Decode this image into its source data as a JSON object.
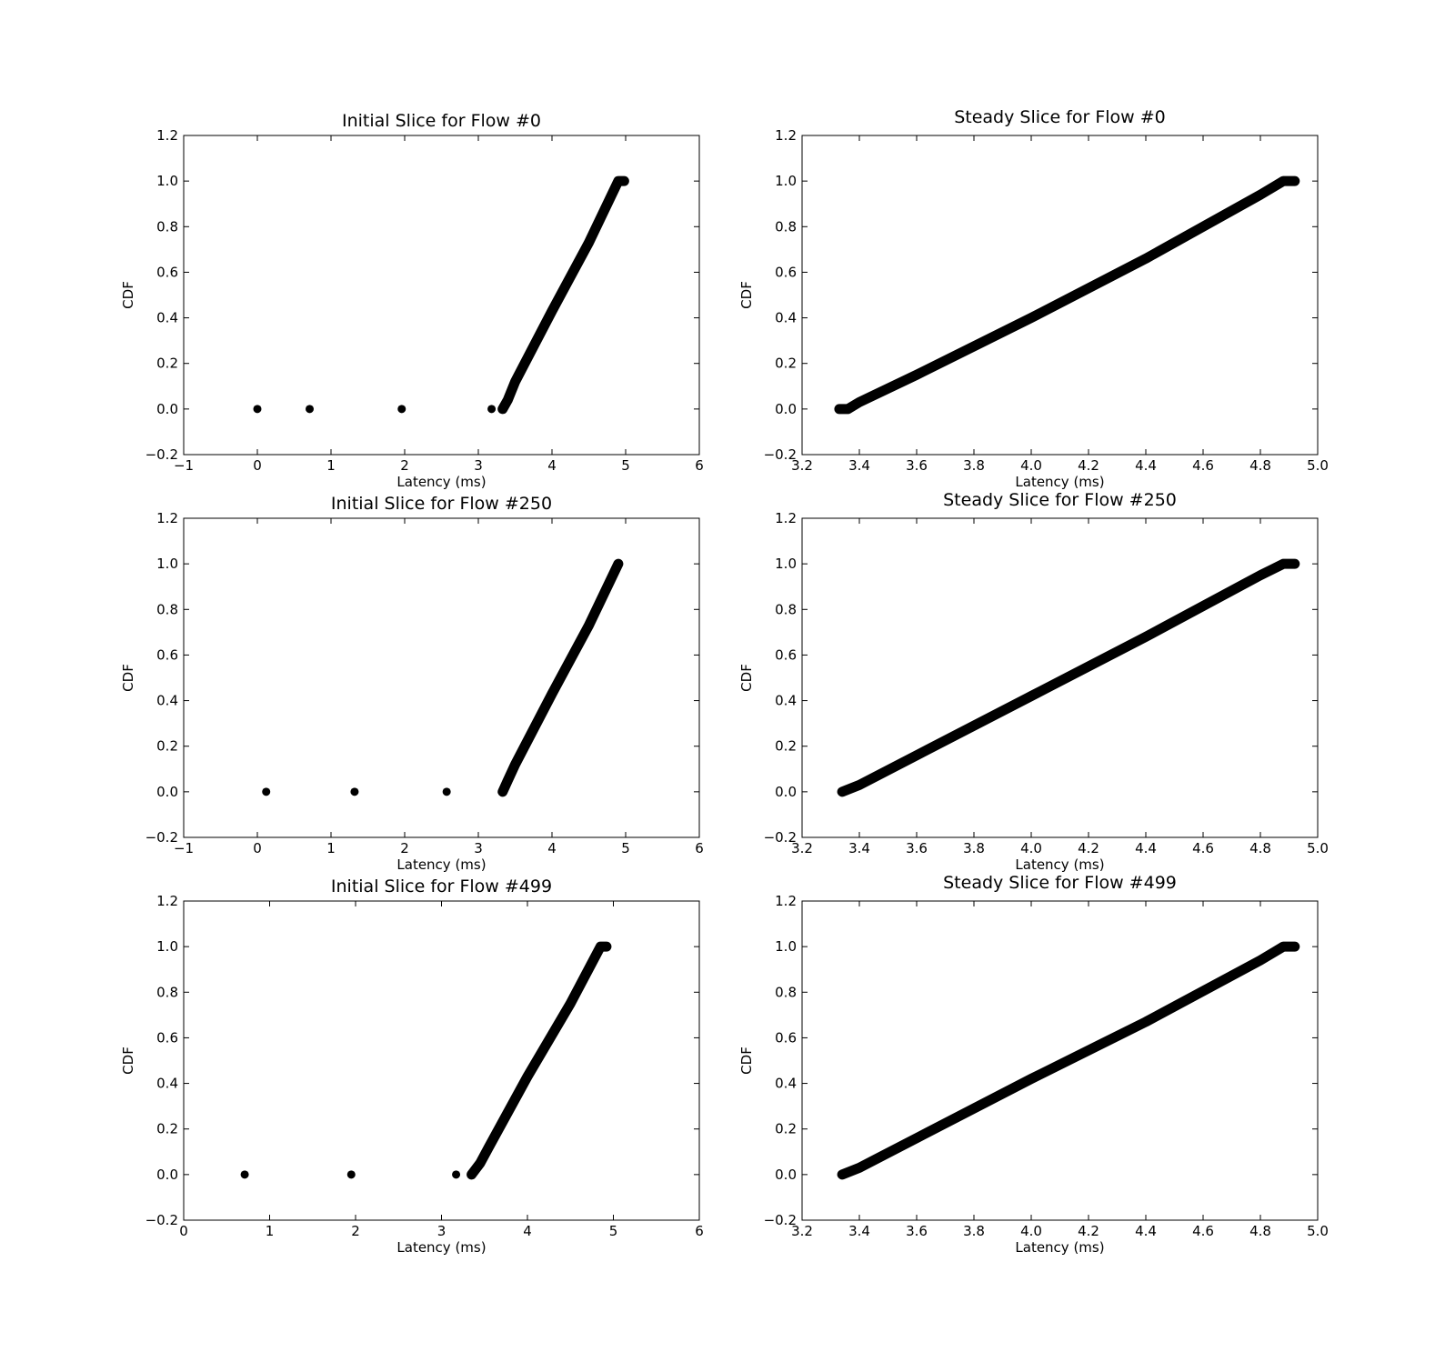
{
  "figure": {
    "background": "#ffffff",
    "marker_color": "#000000"
  },
  "chart_data": [
    {
      "type": "scatter",
      "title": "Initial Slice for Flow #0",
      "xlabel": "Latency (ms)",
      "ylabel": "CDF",
      "xlim": [
        -1,
        6
      ],
      "ylim": [
        -0.2,
        1.2
      ],
      "xticks": [
        -1,
        0,
        1,
        2,
        3,
        4,
        5,
        6
      ],
      "xtick_labels": [
        "−1",
        "0",
        "1",
        "2",
        "3",
        "4",
        "5",
        "6"
      ],
      "yticks": [
        -0.2,
        0.0,
        0.2,
        0.4,
        0.6,
        0.8,
        1.0,
        1.2
      ],
      "ytick_labels": [
        "−0.2",
        "0.0",
        "0.2",
        "0.4",
        "0.6",
        "0.8",
        "1.0",
        "1.2"
      ],
      "grid": false,
      "outliers": [
        [
          0.0,
          0.0
        ],
        [
          0.71,
          0.0
        ],
        [
          1.96,
          0.0
        ],
        [
          3.18,
          0.0
        ]
      ],
      "curve": [
        [
          3.33,
          0.0
        ],
        [
          3.4,
          0.04
        ],
        [
          3.5,
          0.12
        ],
        [
          4.0,
          0.43
        ],
        [
          4.5,
          0.73
        ],
        [
          4.9,
          1.0
        ],
        [
          4.98,
          1.0
        ]
      ]
    },
    {
      "type": "scatter",
      "title": "Steady Slice for Flow #0",
      "xlabel": "Latency (ms)",
      "ylabel": "CDF",
      "xlim": [
        3.2,
        5.0
      ],
      "ylim": [
        -0.2,
        1.2
      ],
      "xticks": [
        3.2,
        3.4,
        3.6,
        3.8,
        4.0,
        4.2,
        4.4,
        4.6,
        4.8,
        5.0
      ],
      "xtick_labels": [
        "3.2",
        "3.4",
        "3.6",
        "3.8",
        "4.0",
        "4.2",
        "4.4",
        "4.6",
        "4.8",
        "5.0"
      ],
      "yticks": [
        -0.2,
        0.0,
        0.2,
        0.4,
        0.6,
        0.8,
        1.0,
        1.2
      ],
      "ytick_labels": [
        "−0.2",
        "0.0",
        "0.2",
        "0.4",
        "0.6",
        "0.8",
        "1.0",
        "1.2"
      ],
      "grid": false,
      "outliers": [],
      "curve": [
        [
          3.33,
          0.0
        ],
        [
          3.36,
          0.0
        ],
        [
          3.4,
          0.03
        ],
        [
          3.6,
          0.15
        ],
        [
          4.0,
          0.4
        ],
        [
          4.4,
          0.66
        ],
        [
          4.8,
          0.94
        ],
        [
          4.88,
          1.0
        ],
        [
          4.92,
          1.0
        ]
      ]
    },
    {
      "type": "scatter",
      "title": "Initial Slice for Flow #250",
      "xlabel": "Latency (ms)",
      "ylabel": "CDF",
      "xlim": [
        -1,
        6
      ],
      "ylim": [
        -0.2,
        1.2
      ],
      "xticks": [
        -1,
        0,
        1,
        2,
        3,
        4,
        5,
        6
      ],
      "xtick_labels": [
        "−1",
        "0",
        "1",
        "2",
        "3",
        "4",
        "5",
        "6"
      ],
      "yticks": [
        -0.2,
        0.0,
        0.2,
        0.4,
        0.6,
        0.8,
        1.0,
        1.2
      ],
      "ytick_labels": [
        "−0.2",
        "0.0",
        "0.2",
        "0.4",
        "0.6",
        "0.8",
        "1.0",
        "1.2"
      ],
      "grid": false,
      "outliers": [
        [
          0.12,
          0.0
        ],
        [
          1.32,
          0.0
        ],
        [
          2.57,
          0.0
        ]
      ],
      "curve": [
        [
          3.33,
          0.0
        ],
        [
          3.4,
          0.05
        ],
        [
          3.5,
          0.12
        ],
        [
          4.0,
          0.43
        ],
        [
          4.5,
          0.73
        ],
        [
          4.9,
          1.0
        ]
      ]
    },
    {
      "type": "scatter",
      "title": "Steady Slice for Flow #250",
      "xlabel": "Latency (ms)",
      "ylabel": "CDF",
      "xlim": [
        3.2,
        5.0
      ],
      "ylim": [
        -0.2,
        1.2
      ],
      "xticks": [
        3.2,
        3.4,
        3.6,
        3.8,
        4.0,
        4.2,
        4.4,
        4.6,
        4.8,
        5.0
      ],
      "xtick_labels": [
        "3.2",
        "3.4",
        "3.6",
        "3.8",
        "4.0",
        "4.2",
        "4.4",
        "4.6",
        "4.8",
        "5.0"
      ],
      "yticks": [
        -0.2,
        0.0,
        0.2,
        0.4,
        0.6,
        0.8,
        1.0,
        1.2
      ],
      "ytick_labels": [
        "−0.2",
        "0.0",
        "0.2",
        "0.4",
        "0.6",
        "0.8",
        "1.0",
        "1.2"
      ],
      "grid": false,
      "outliers": [],
      "curve": [
        [
          3.34,
          0.0
        ],
        [
          3.4,
          0.03
        ],
        [
          3.6,
          0.16
        ],
        [
          4.0,
          0.42
        ],
        [
          4.4,
          0.68
        ],
        [
          4.8,
          0.95
        ],
        [
          4.88,
          1.0
        ],
        [
          4.92,
          1.0
        ]
      ]
    },
    {
      "type": "scatter",
      "title": "Initial Slice for Flow #499",
      "xlabel": "Latency (ms)",
      "ylabel": "CDF",
      "xlim": [
        0,
        6
      ],
      "ylim": [
        -0.2,
        1.2
      ],
      "xticks": [
        0,
        1,
        2,
        3,
        4,
        5,
        6
      ],
      "xtick_labels": [
        "0",
        "1",
        "2",
        "3",
        "4",
        "5",
        "6"
      ],
      "yticks": [
        -0.2,
        0.0,
        0.2,
        0.4,
        0.6,
        0.8,
        1.0,
        1.2
      ],
      "ytick_labels": [
        "−0.2",
        "0.0",
        "0.2",
        "0.4",
        "0.6",
        "0.8",
        "1.0",
        "1.2"
      ],
      "grid": false,
      "outliers": [
        [
          0.71,
          0.0
        ],
        [
          1.95,
          0.0
        ],
        [
          3.17,
          0.0
        ]
      ],
      "curve": [
        [
          3.35,
          0.0
        ],
        [
          3.45,
          0.05
        ],
        [
          3.55,
          0.12
        ],
        [
          4.0,
          0.43
        ],
        [
          4.5,
          0.75
        ],
        [
          4.85,
          1.0
        ],
        [
          4.92,
          1.0
        ]
      ]
    },
    {
      "type": "scatter",
      "title": "Steady Slice for Flow #499",
      "xlabel": "Latency (ms)",
      "ylabel": "CDF",
      "xlim": [
        3.2,
        5.0
      ],
      "ylim": [
        -0.2,
        1.2
      ],
      "xticks": [
        3.2,
        3.4,
        3.6,
        3.8,
        4.0,
        4.2,
        4.4,
        4.6,
        4.8,
        5.0
      ],
      "xtick_labels": [
        "3.2",
        "3.4",
        "3.6",
        "3.8",
        "4.0",
        "4.2",
        "4.4",
        "4.6",
        "4.8",
        "5.0"
      ],
      "yticks": [
        -0.2,
        0.0,
        0.2,
        0.4,
        0.6,
        0.8,
        1.0,
        1.2
      ],
      "ytick_labels": [
        "−0.2",
        "0.0",
        "0.2",
        "0.4",
        "0.6",
        "0.8",
        "1.0",
        "1.2"
      ],
      "grid": false,
      "outliers": [],
      "curve": [
        [
          3.34,
          0.0
        ],
        [
          3.4,
          0.03
        ],
        [
          3.6,
          0.16
        ],
        [
          4.0,
          0.42
        ],
        [
          4.4,
          0.67
        ],
        [
          4.8,
          0.94
        ],
        [
          4.88,
          1.0
        ],
        [
          4.92,
          1.0
        ]
      ]
    }
  ]
}
